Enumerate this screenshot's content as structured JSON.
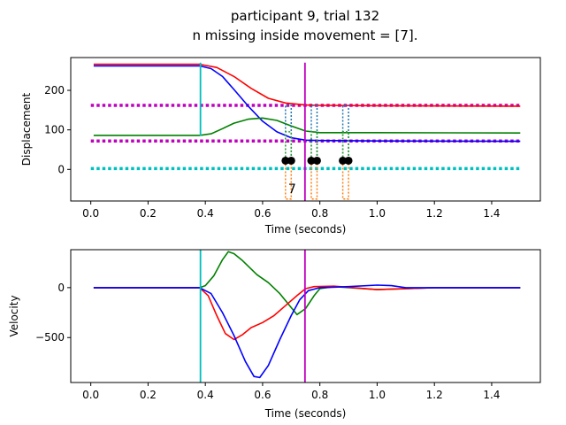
{
  "figure": {
    "title_line1": "participant 9, trial 132",
    "title_line2": "n missing inside movement = [7]."
  },
  "colors": {
    "red": "#ff0000",
    "blue": "#0000ff",
    "green": "#008000",
    "cyan": "#00bfbf",
    "magenta": "#bf00bf",
    "dotted_blue": "#1f77b4",
    "dotted_orange": "#ff7f0e",
    "dotted_green": "#2ca02c",
    "marker": "#000000",
    "annotation_text": "#000000"
  },
  "chart_data": [
    {
      "type": "line",
      "xlabel": "Time (seconds)",
      "ylabel": "Displacement",
      "xlim": [
        -0.07,
        1.57
      ],
      "ylim": [
        -80,
        283
      ],
      "x_ticks": [
        0.0,
        0.2,
        0.4,
        0.6,
        0.8,
        1.0,
        1.2,
        1.4
      ],
      "x_tick_labels": [
        "0.0",
        "0.2",
        "0.4",
        "0.6",
        "0.8",
        "1.0",
        "1.2",
        "1.4"
      ],
      "y_ticks": [
        0,
        100,
        200
      ],
      "y_tick_labels": [
        "0",
        "100",
        "200"
      ],
      "grid": false,
      "series": [
        {
          "color": "red",
          "style": "solid",
          "points": [
            [
              0.01,
              266
            ],
            [
              0.38,
              266
            ],
            [
              0.44,
              258
            ],
            [
              0.5,
              235
            ],
            [
              0.56,
              205
            ],
            [
              0.62,
              180
            ],
            [
              0.68,
              168
            ],
            [
              0.75,
              163
            ],
            [
              0.8,
              162
            ],
            [
              1.0,
              161
            ],
            [
              1.5,
              160
            ]
          ]
        },
        {
          "color": "blue",
          "style": "solid",
          "points": [
            [
              0.01,
              262
            ],
            [
              0.38,
              262
            ],
            [
              0.42,
              255
            ],
            [
              0.46,
              235
            ],
            [
              0.5,
              202
            ],
            [
              0.55,
              160
            ],
            [
              0.6,
              122
            ],
            [
              0.65,
              95
            ],
            [
              0.7,
              80
            ],
            [
              0.75,
              74
            ],
            [
              0.8,
              73
            ],
            [
              1.0,
              72
            ],
            [
              1.5,
              71
            ]
          ]
        },
        {
          "color": "green",
          "style": "solid",
          "points": [
            [
              0.01,
              86
            ],
            [
              0.38,
              86
            ],
            [
              0.42,
              90
            ],
            [
              0.46,
              103
            ],
            [
              0.5,
              117
            ],
            [
              0.55,
              127
            ],
            [
              0.6,
              130
            ],
            [
              0.65,
              124
            ],
            [
              0.7,
              110
            ],
            [
              0.75,
              97
            ],
            [
              0.8,
              93
            ],
            [
              1.0,
              93
            ],
            [
              1.5,
              92
            ]
          ]
        },
        {
          "color": "magenta",
          "style": "dotted",
          "points": [
            [
              0.0,
              162
            ],
            [
              1.5,
              162
            ]
          ]
        },
        {
          "color": "magenta",
          "style": "dotted",
          "points": [
            [
              0.0,
              72
            ],
            [
              1.5,
              72
            ]
          ]
        },
        {
          "color": "cyan",
          "style": "dotted",
          "points": [
            [
              0.0,
              2
            ],
            [
              1.5,
              2
            ]
          ]
        }
      ],
      "vlines": [
        {
          "x": 0.383,
          "y_range": [
            85,
            270
          ],
          "color": "cyan"
        },
        {
          "x": 0.748,
          "y_range": [
            -80,
            270
          ],
          "color": "magenta"
        }
      ],
      "gap_markers": [
        {
          "x": [
            0.68,
            0.7
          ],
          "y": 22
        },
        {
          "x": [
            0.77,
            0.79
          ],
          "y": 22
        },
        {
          "x": [
            0.88,
            0.9
          ],
          "y": 22
        }
      ],
      "gap_pulses": [
        {
          "color": "dotted_blue",
          "points": [
            [
              0.68,
              22
            ],
            [
              0.68,
              162
            ],
            [
              0.7,
              162
            ],
            [
              0.7,
              22
            ]
          ]
        },
        {
          "color": "dotted_blue",
          "points": [
            [
              0.77,
              22
            ],
            [
              0.77,
              162
            ],
            [
              0.79,
              162
            ],
            [
              0.79,
              22
            ]
          ]
        },
        {
          "color": "dotted_blue",
          "points": [
            [
              0.88,
              22
            ],
            [
              0.88,
              162
            ],
            [
              0.9,
              162
            ],
            [
              0.9,
              22
            ]
          ]
        },
        {
          "color": "dotted_orange",
          "points": [
            [
              0.68,
              22
            ],
            [
              0.68,
              -75
            ],
            [
              0.7,
              -75
            ],
            [
              0.7,
              22
            ]
          ]
        },
        {
          "color": "dotted_orange",
          "points": [
            [
              0.77,
              22
            ],
            [
              0.77,
              -75
            ],
            [
              0.79,
              -75
            ],
            [
              0.79,
              22
            ]
          ]
        },
        {
          "color": "dotted_orange",
          "points": [
            [
              0.88,
              22
            ],
            [
              0.88,
              -75
            ],
            [
              0.9,
              -75
            ],
            [
              0.9,
              22
            ]
          ]
        },
        {
          "color": "dotted_green",
          "points": [
            [
              0.68,
              22
            ],
            [
              0.68,
              95
            ],
            [
              0.7,
              95
            ],
            [
              0.7,
              22
            ]
          ]
        },
        {
          "color": "dotted_green",
          "points": [
            [
              0.77,
              22
            ],
            [
              0.77,
              95
            ],
            [
              0.79,
              95
            ],
            [
              0.79,
              22
            ]
          ]
        },
        {
          "color": "dotted_green",
          "points": [
            [
              0.88,
              22
            ],
            [
              0.88,
              95
            ],
            [
              0.9,
              95
            ],
            [
              0.9,
              22
            ]
          ]
        }
      ],
      "annotations": [
        {
          "text": "7",
          "x": 0.703,
          "y": -60
        }
      ]
    },
    {
      "type": "line",
      "xlabel": "Time (seconds)",
      "ylabel": "Velocity",
      "xlim": [
        -0.07,
        1.57
      ],
      "ylim": [
        -950,
        380
      ],
      "x_ticks": [
        0.0,
        0.2,
        0.4,
        0.6,
        0.8,
        1.0,
        1.2,
        1.4
      ],
      "x_tick_labels": [
        "0.0",
        "0.2",
        "0.4",
        "0.6",
        "0.8",
        "1.0",
        "1.2",
        "1.4"
      ],
      "y_ticks": [
        -500,
        0
      ],
      "y_tick_labels": [
        "−500",
        "0"
      ],
      "grid": false,
      "series": [
        {
          "color": "green",
          "style": "solid",
          "points": [
            [
              0.01,
              0
            ],
            [
              0.38,
              0
            ],
            [
              0.4,
              20
            ],
            [
              0.43,
              120
            ],
            [
              0.46,
              280
            ],
            [
              0.48,
              360
            ],
            [
              0.5,
              340
            ],
            [
              0.53,
              270
            ],
            [
              0.58,
              130
            ],
            [
              0.62,
              50
            ],
            [
              0.66,
              -60
            ],
            [
              0.7,
              -200
            ],
            [
              0.72,
              -270
            ],
            [
              0.75,
              -210
            ],
            [
              0.78,
              -80
            ],
            [
              0.8,
              -10
            ],
            [
              0.85,
              10
            ],
            [
              1.0,
              -20
            ],
            [
              1.2,
              0
            ],
            [
              1.5,
              0
            ]
          ]
        },
        {
          "color": "red",
          "style": "solid",
          "points": [
            [
              0.01,
              0
            ],
            [
              0.38,
              0
            ],
            [
              0.41,
              -80
            ],
            [
              0.44,
              -280
            ],
            [
              0.47,
              -460
            ],
            [
              0.5,
              -520
            ],
            [
              0.53,
              -470
            ],
            [
              0.56,
              -400
            ],
            [
              0.6,
              -350
            ],
            [
              0.64,
              -280
            ],
            [
              0.68,
              -180
            ],
            [
              0.72,
              -80
            ],
            [
              0.75,
              -10
            ],
            [
              0.78,
              10
            ],
            [
              0.85,
              15
            ],
            [
              1.0,
              -20
            ],
            [
              1.2,
              0
            ],
            [
              1.5,
              0
            ]
          ]
        },
        {
          "color": "blue",
          "style": "solid",
          "points": [
            [
              0.01,
              0
            ],
            [
              0.38,
              0
            ],
            [
              0.42,
              -60
            ],
            [
              0.46,
              -250
            ],
            [
              0.5,
              -480
            ],
            [
              0.54,
              -740
            ],
            [
              0.57,
              -890
            ],
            [
              0.59,
              -900
            ],
            [
              0.62,
              -780
            ],
            [
              0.66,
              -520
            ],
            [
              0.7,
              -280
            ],
            [
              0.73,
              -120
            ],
            [
              0.76,
              -30
            ],
            [
              0.8,
              0
            ],
            [
              0.9,
              10
            ],
            [
              1.0,
              25
            ],
            [
              1.05,
              20
            ],
            [
              1.1,
              0
            ],
            [
              1.5,
              0
            ]
          ]
        }
      ],
      "vlines": [
        {
          "x": 0.383,
          "y_range": [
            -950,
            380
          ],
          "color": "cyan"
        },
        {
          "x": 0.748,
          "y_range": [
            -950,
            380
          ],
          "color": "magenta"
        }
      ]
    }
  ]
}
